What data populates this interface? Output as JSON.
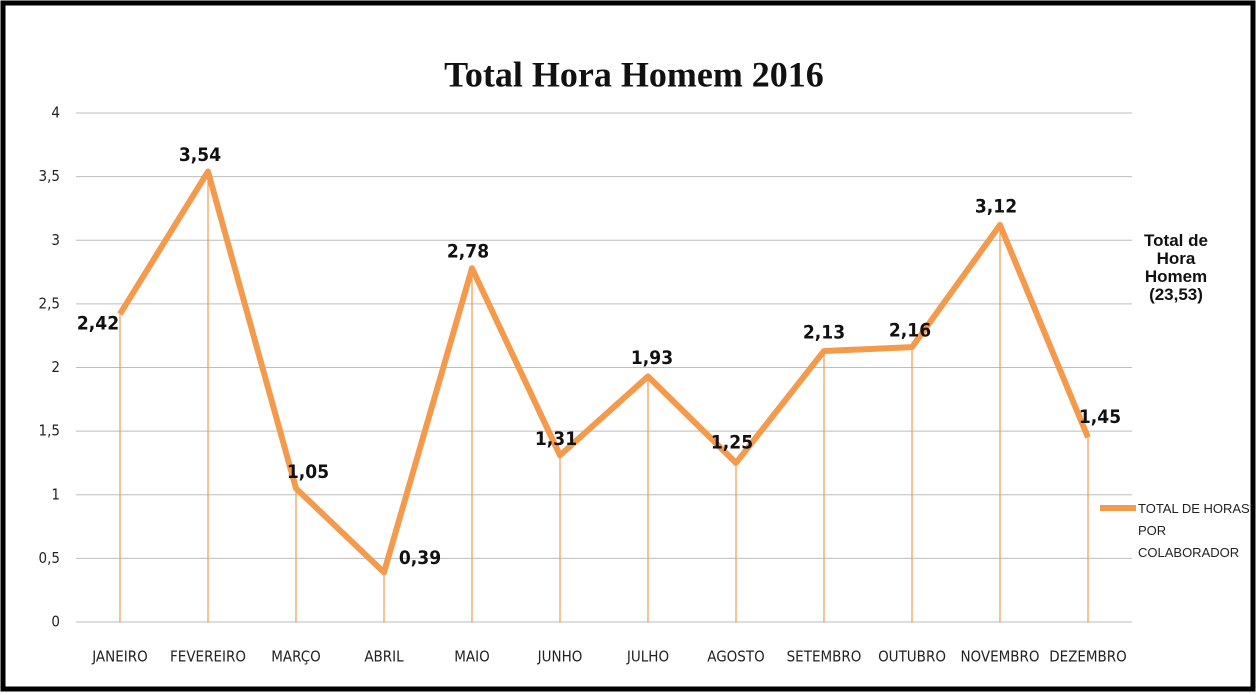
{
  "chart_data": {
    "type": "line",
    "title": "Total Hora Homem 2016",
    "annotation": "Total de Hora Homem (23,53)",
    "categories": [
      "JANEIRO",
      "FEVEREIRO",
      "MARÇO",
      "ABRIL",
      "MAIO",
      "JUNHO",
      "JULHO",
      "AGOSTO",
      "SETEMBRO",
      "OUTUBRO",
      "NOVEMBRO",
      "DEZEMBRO"
    ],
    "series": [
      {
        "name": "TOTAL DE HORAS POR COLABORADOR",
        "color": "#f39a4c",
        "values": [
          2.42,
          3.54,
          1.05,
          0.39,
          2.78,
          1.31,
          1.93,
          1.25,
          2.13,
          2.16,
          3.12,
          1.45
        ],
        "value_labels": [
          "2,42",
          "3,54",
          "1,05",
          "0,39",
          "2,78",
          "1,31",
          "1,93",
          "1,25",
          "2,13",
          "2,16",
          "3,12",
          "1,45"
        ]
      }
    ],
    "ylim": [
      0,
      4
    ],
    "yticks": [
      0,
      {
        "value": 0.5,
        "label": "0,5"
      },
      1,
      {
        "value": 1.5,
        "label": "1,5"
      },
      2,
      {
        "value": 2.5,
        "label": "2,5"
      },
      3,
      {
        "value": 3.5,
        "label": "3,5"
      },
      4
    ],
    "grid": true,
    "legend": "right"
  }
}
